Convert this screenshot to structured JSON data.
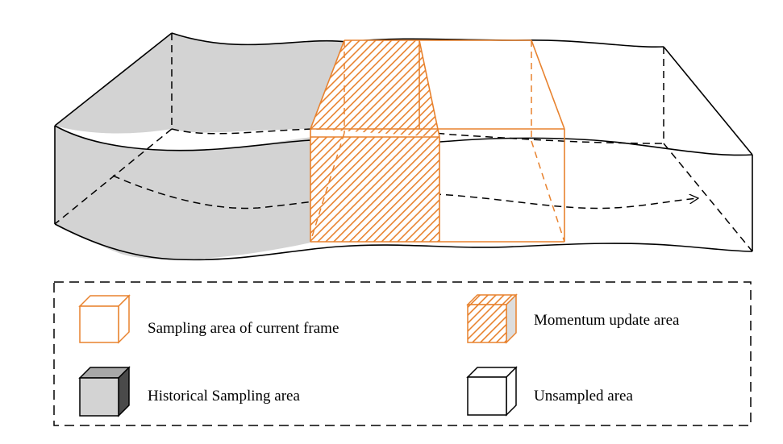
{
  "colors": {
    "orange": "#E8822E",
    "gray": "#D3D3D3",
    "gray_dark": "#4a4a4a",
    "line": "#000000"
  },
  "legend": {
    "items": [
      {
        "key": "current",
        "label": "Sampling area of current frame",
        "icon": "orange-outline-cube-icon"
      },
      {
        "key": "momentum",
        "label": "Momentum update area",
        "icon": "orange-hatched-cube-icon"
      },
      {
        "key": "historical",
        "label": "Historical Sampling area",
        "icon": "gray-cube-icon"
      },
      {
        "key": "unsampled",
        "label": "Unsampled area",
        "icon": "white-cube-icon"
      }
    ]
  }
}
